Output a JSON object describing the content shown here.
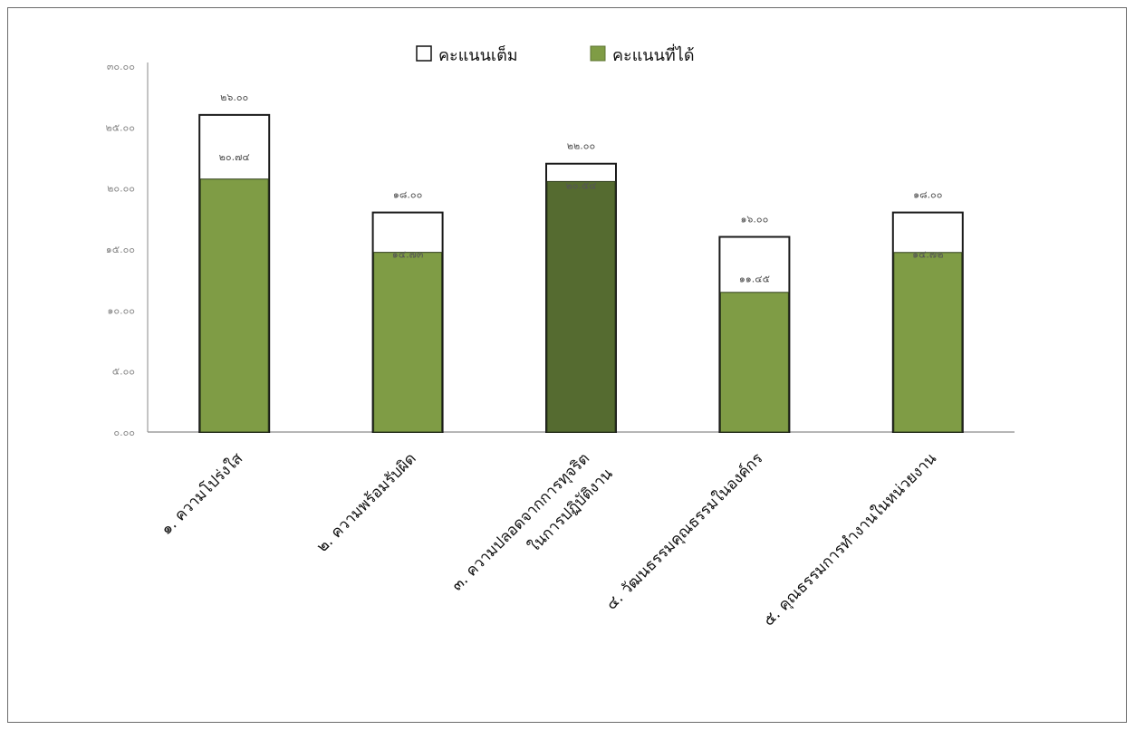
{
  "chart_data": {
    "type": "bar",
    "title": "",
    "xlabel": "",
    "ylabel": "",
    "ylim": [
      0,
      30
    ],
    "yticks": [
      0,
      5,
      10,
      15,
      20,
      25,
      30
    ],
    "ytick_labels": [
      "๐.๐๐",
      "๕.๐๐",
      "๑๐.๐๐",
      "๑๕.๐๐",
      "๒๐.๐๐",
      "๒๕.๐๐",
      "๓๐.๐๐"
    ],
    "grid": false,
    "legend_position": "top-center",
    "categories": [
      [
        "๑. ความโปร่งใส"
      ],
      [
        "๒. ความพร้อมรับผิด"
      ],
      [
        "๓.  ความปลอดจากการทุจริต",
        "ในการปฏิบัติงาน"
      ],
      [
        "๔. วัฒนธรรมคุณธรรมในองค์กร"
      ],
      [
        "๕. คุณธรรมการทำงานในหน่วยงาน"
      ]
    ],
    "series": [
      {
        "name": "คะแนนเต็ม",
        "color": "#ffffff",
        "values": [
          26,
          18,
          22,
          16,
          18
        ],
        "labels": [
          "๒๖.๐๐",
          "๑๘.๐๐",
          "๒๒.๐๐",
          "๑๖.๐๐",
          "๑๘.๐๐"
        ]
      },
      {
        "name": "คะแนนที่ได้",
        "color": "#7f9c45",
        "highlight_color": "#556b30",
        "highlight_index": 2,
        "values": [
          20.74,
          14.73,
          20.54,
          11.45,
          14.72
        ],
        "labels": [
          "๒๐.๗๔",
          "๑๔.๗๓",
          "๒๐.๕๔",
          "๑๑.๔๕",
          "๑๔.๗๒"
        ]
      }
    ]
  }
}
